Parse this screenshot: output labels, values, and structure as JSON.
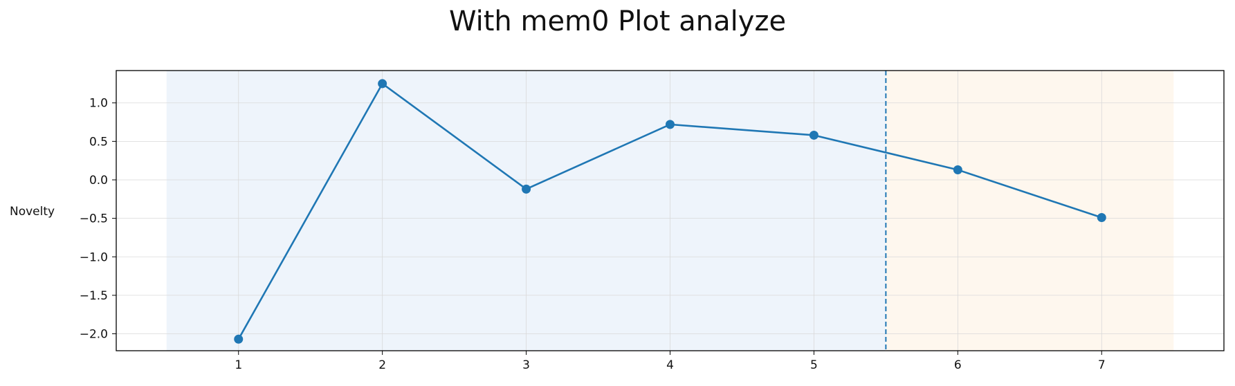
{
  "chart_data": {
    "type": "line",
    "title": "With mem0 Plot analyze",
    "xlabel": "",
    "ylabel": "Novelty",
    "x": [
      1,
      2,
      3,
      4,
      5,
      6,
      7
    ],
    "series": [
      {
        "values": [
          -2.07,
          1.25,
          -0.12,
          0.72,
          0.58,
          0.13,
          -0.49
        ],
        "color": "#1f77b4"
      }
    ],
    "xlim": [
      0.15,
      7.85
    ],
    "ylim": [
      -2.22,
      1.42
    ],
    "xticks": [
      "1",
      "2",
      "3",
      "4",
      "5",
      "6",
      "7"
    ],
    "yticks": [
      "1.0",
      "0.5",
      "0.0",
      "−0.5",
      "−1.0",
      "−1.5",
      "−2.0"
    ],
    "ytick_values": [
      1.0,
      0.5,
      0.0,
      -0.5,
      -1.0,
      -1.5,
      -2.0
    ],
    "grid": true,
    "shaded_regions": [
      {
        "x_start": 0.5,
        "x_end": 5.5,
        "color": "#eef4fb"
      },
      {
        "x_start": 5.5,
        "x_end": 7.5,
        "color": "#fef7ee"
      }
    ],
    "vertical_line": {
      "x": 5.5,
      "style": "dashed",
      "color": "#1f77b4"
    }
  }
}
